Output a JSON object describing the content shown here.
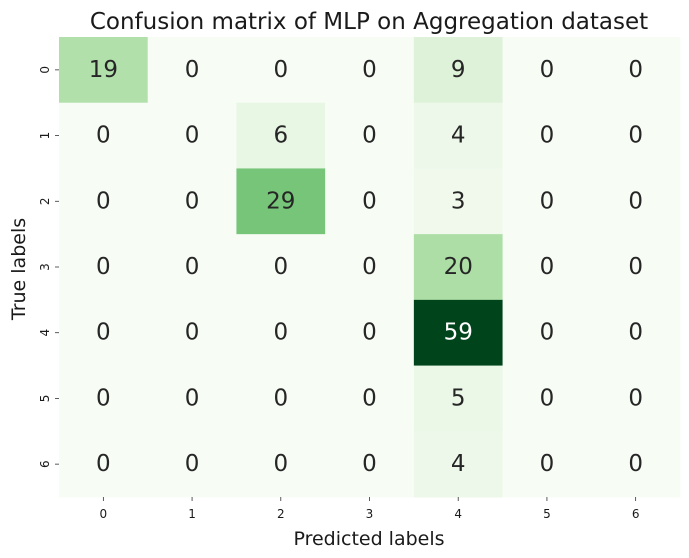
{
  "chart_data": {
    "type": "heatmap",
    "title": "Confusion matrix of MLP on Aggregation dataset",
    "xlabel": "Predicted labels",
    "ylabel": "True labels",
    "x_categories": [
      "0",
      "1",
      "2",
      "3",
      "4",
      "5",
      "6"
    ],
    "y_categories": [
      "0",
      "1",
      "2",
      "3",
      "4",
      "5",
      "6"
    ],
    "values": [
      [
        19,
        0,
        0,
        0,
        9,
        0,
        0
      ],
      [
        0,
        0,
        6,
        0,
        4,
        0,
        0
      ],
      [
        0,
        0,
        29,
        0,
        3,
        0,
        0
      ],
      [
        0,
        0,
        0,
        0,
        20,
        0,
        0
      ],
      [
        0,
        0,
        0,
        0,
        59,
        0,
        0
      ],
      [
        0,
        0,
        0,
        0,
        5,
        0,
        0
      ],
      [
        0,
        0,
        0,
        0,
        4,
        0,
        0
      ]
    ],
    "value_range": [
      0,
      59
    ],
    "colormap": "Greens",
    "annotated": true,
    "colorbar": false,
    "grid": false
  }
}
